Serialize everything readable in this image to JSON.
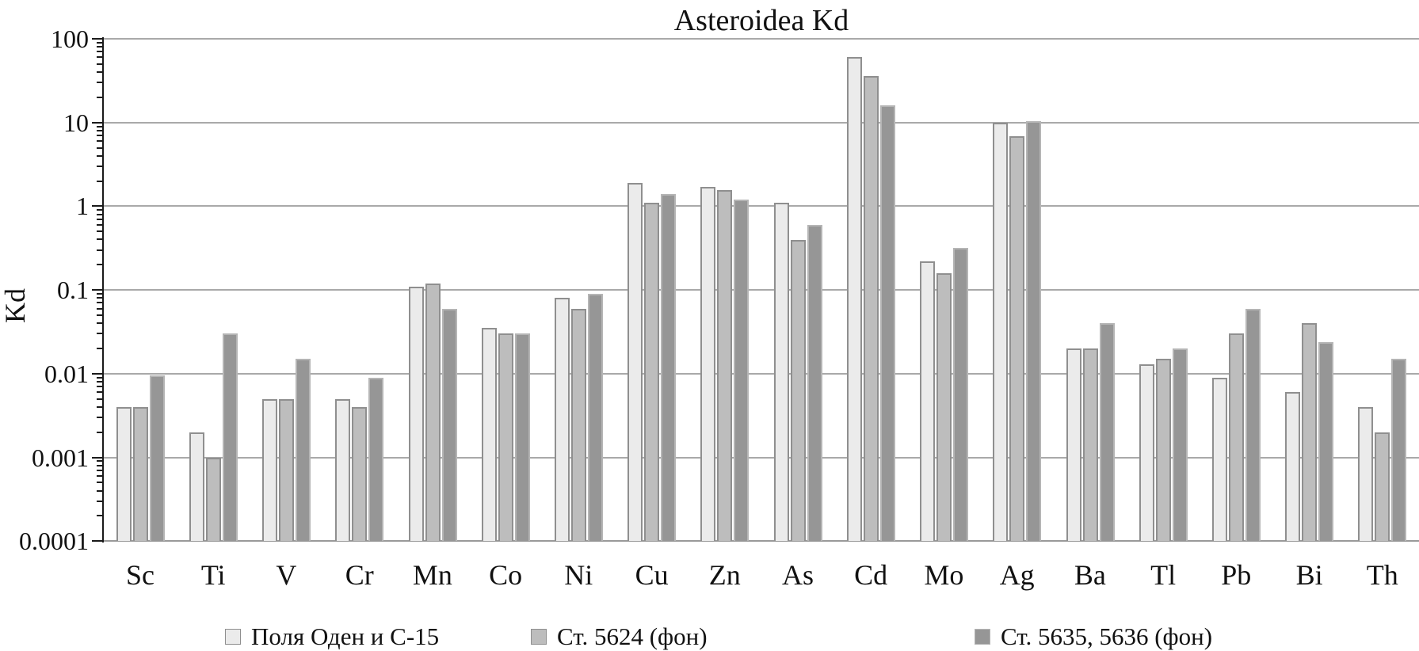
{
  "title": "Asteroidea Kd",
  "y_axis": {
    "label": "Kd",
    "ticks": [
      "100",
      "10",
      "1",
      "0.1",
      "0.01",
      "0.001",
      "0.0001"
    ]
  },
  "legend": [
    {
      "label": "Поля Оден и С-15",
      "color": "#ebebeb",
      "border": "#8f8f8f"
    },
    {
      "label": "Ст. 5624 (фон)",
      "color": "#bdbdbd",
      "border": "#8f8f8f"
    },
    {
      "label": "Ст. 5635, 5636 (фон)",
      "color": "#969696",
      "border": "#b5b5b5"
    }
  ],
  "chart_data": {
    "type": "bar",
    "title": "Asteroidea Kd",
    "xlabel": "",
    "ylabel": "Kd",
    "yscale": "log",
    "ylim": [
      0.0001,
      100
    ],
    "grid": true,
    "legend_position": "bottom",
    "categories": [
      "Sc",
      "Ti",
      "V",
      "Cr",
      "Mn",
      "Co",
      "Ni",
      "Cu",
      "Zn",
      "As",
      "Cd",
      "Mo",
      "Ag",
      "Ba",
      "Tl",
      "Pb",
      "Bi",
      "Th"
    ],
    "series": [
      {
        "name": "Поля Оден и С-15",
        "values": [
          0.004,
          0.002,
          0.005,
          0.005,
          0.11,
          0.035,
          0.08,
          1.9,
          1.7,
          1.1,
          60,
          0.22,
          10,
          0.02,
          0.013,
          0.009,
          0.006,
          0.004
        ]
      },
      {
        "name": "Ст. 5624 (фон)",
        "values": [
          0.004,
          0.001,
          0.005,
          0.004,
          0.12,
          0.03,
          0.06,
          1.1,
          1.55,
          0.4,
          36,
          0.16,
          6.8,
          0.02,
          0.015,
          0.03,
          0.04,
          0.002
        ]
      },
      {
        "name": "Ст. 5635, 5636 (фон)",
        "values": [
          0.0095,
          0.03,
          0.015,
          0.009,
          0.06,
          0.03,
          0.09,
          1.4,
          1.2,
          0.6,
          16,
          0.32,
          10.5,
          0.04,
          0.02,
          0.06,
          0.024,
          0.015
        ]
      }
    ]
  }
}
